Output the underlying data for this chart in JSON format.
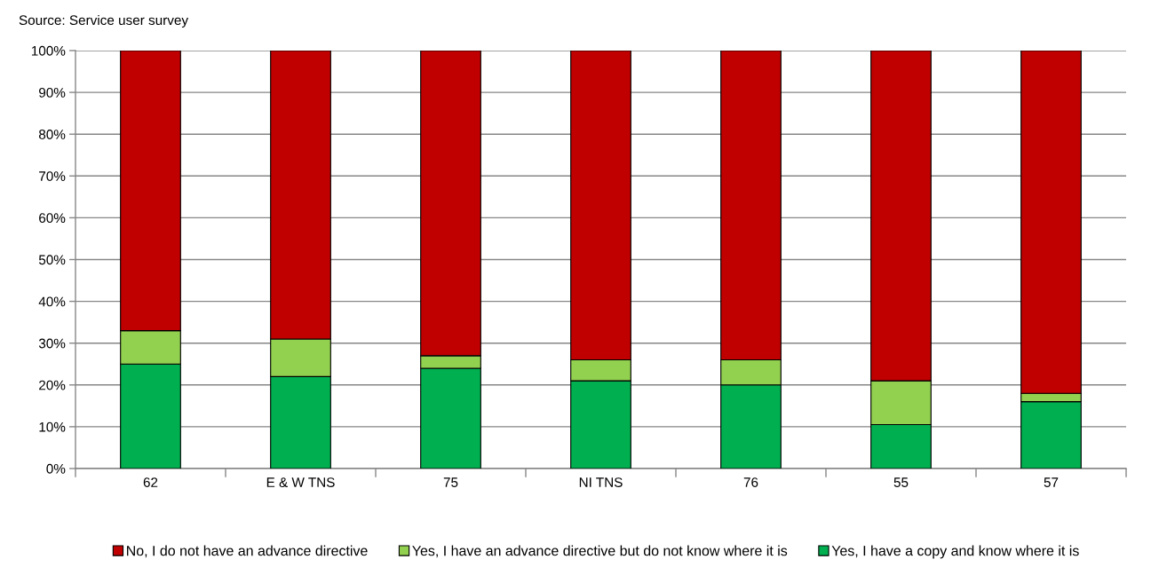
{
  "chart_data": {
    "type": "bar",
    "stacked": true,
    "annotations": [
      "Source: Service user survey"
    ],
    "categories": [
      "62",
      "E & W TNS",
      "75",
      "NI TNS",
      "76",
      "55",
      "57"
    ],
    "series": [
      {
        "name": "Yes, I have a copy and know where it is",
        "color": "#00b050",
        "values": [
          25,
          22,
          24,
          21,
          20,
          10.5,
          16
        ]
      },
      {
        "name": "Yes, I have an advance directive but do not know where it is",
        "color": "#92d050",
        "values": [
          8,
          9,
          3,
          5,
          6,
          10.5,
          2
        ]
      },
      {
        "name": "No, I do not have an advance directive",
        "color": "#c00000",
        "values": [
          67,
          69,
          73,
          74,
          74,
          79,
          82
        ]
      }
    ],
    "ylim": [
      0,
      100
    ],
    "yticks": [
      {
        "value": 0,
        "label": "0%"
      },
      {
        "value": 10,
        "label": "10%"
      },
      {
        "value": 20,
        "label": "20%"
      },
      {
        "value": 30,
        "label": "30%"
      },
      {
        "value": 40,
        "label": "40%"
      },
      {
        "value": 50,
        "label": "50%"
      },
      {
        "value": 60,
        "label": "60%"
      },
      {
        "value": 70,
        "label": "70%"
      },
      {
        "value": 80,
        "label": "80%"
      },
      {
        "value": 90,
        "label": "90%"
      },
      {
        "value": 100,
        "label": "100%"
      }
    ],
    "grid": "y",
    "legend": "bottom"
  }
}
